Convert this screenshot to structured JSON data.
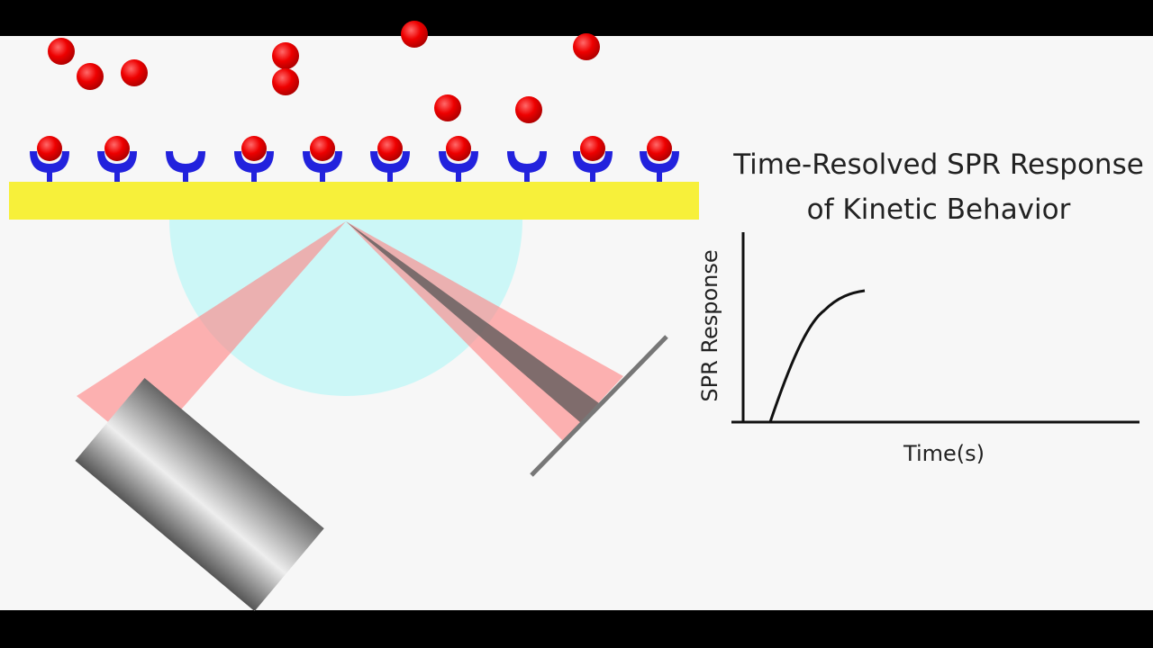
{
  "title": {
    "line1": "Time-Resolved SPR Response",
    "line2": "of Kinetic Behavior"
  },
  "graph": {
    "y_label": "SPR Response",
    "x_label": "Time(s)"
  }
}
